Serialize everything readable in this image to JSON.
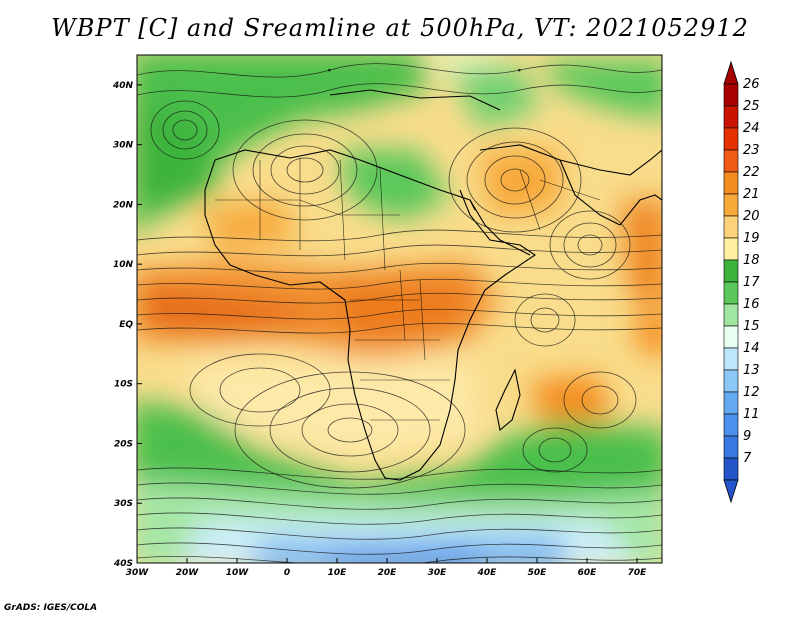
{
  "title": "WBPT [C] and Sreamline at 500hPa, VT: 2021052912",
  "credit": "GrADS: IGES/COLA",
  "map": {
    "lon_range": [
      -30,
      75
    ],
    "lat_range": [
      -40,
      45
    ],
    "lon_ticks": [
      {
        "value": -30,
        "label": "30W"
      },
      {
        "value": -20,
        "label": "20W"
      },
      {
        "value": -10,
        "label": "10W"
      },
      {
        "value": 0,
        "label": "0"
      },
      {
        "value": 10,
        "label": "10E"
      },
      {
        "value": 20,
        "label": "20E"
      },
      {
        "value": 30,
        "label": "30E"
      },
      {
        "value": 40,
        "label": "40E"
      },
      {
        "value": 50,
        "label": "50E"
      },
      {
        "value": 60,
        "label": "60E"
      },
      {
        "value": 70,
        "label": "70E"
      }
    ],
    "lat_ticks": [
      {
        "value": 40,
        "label": "40N"
      },
      {
        "value": 30,
        "label": "30N"
      },
      {
        "value": 20,
        "label": "20N"
      },
      {
        "value": 10,
        "label": "10N"
      },
      {
        "value": 0,
        "label": "EQ"
      },
      {
        "value": -10,
        "label": "10S"
      },
      {
        "value": -20,
        "label": "20S"
      },
      {
        "value": -30,
        "label": "30S"
      },
      {
        "value": -40,
        "label": "40S"
      }
    ]
  },
  "colorbar": {
    "levels": [
      {
        "label": "26",
        "color": "#a80000"
      },
      {
        "label": "25",
        "color": "#c81400"
      },
      {
        "label": "24",
        "color": "#e63200"
      },
      {
        "label": "23",
        "color": "#f05a14"
      },
      {
        "label": "22",
        "color": "#f58c1e"
      },
      {
        "label": "21",
        "color": "#f7a93a"
      },
      {
        "label": "20",
        "color": "#fcd27a"
      },
      {
        "label": "19",
        "color": "#fff0a0"
      },
      {
        "label": "18",
        "color": "#3cb43c"
      },
      {
        "label": "17",
        "color": "#5ac85a"
      },
      {
        "label": "16",
        "color": "#a0e6a0"
      },
      {
        "label": "15",
        "color": "#e6fff0"
      },
      {
        "label": "14",
        "color": "#bee6fa"
      },
      {
        "label": "13",
        "color": "#8cc8f5"
      },
      {
        "label": "12",
        "color": "#64aaf0"
      },
      {
        "label": "11",
        "color": "#4b91eb"
      },
      {
        "label": "9",
        "color": "#3778e1"
      },
      {
        "label": "7",
        "color": "#2355c8"
      }
    ],
    "top_arrow_color": "#a80000",
    "bottom_arrow_color": "#2355c8"
  }
}
